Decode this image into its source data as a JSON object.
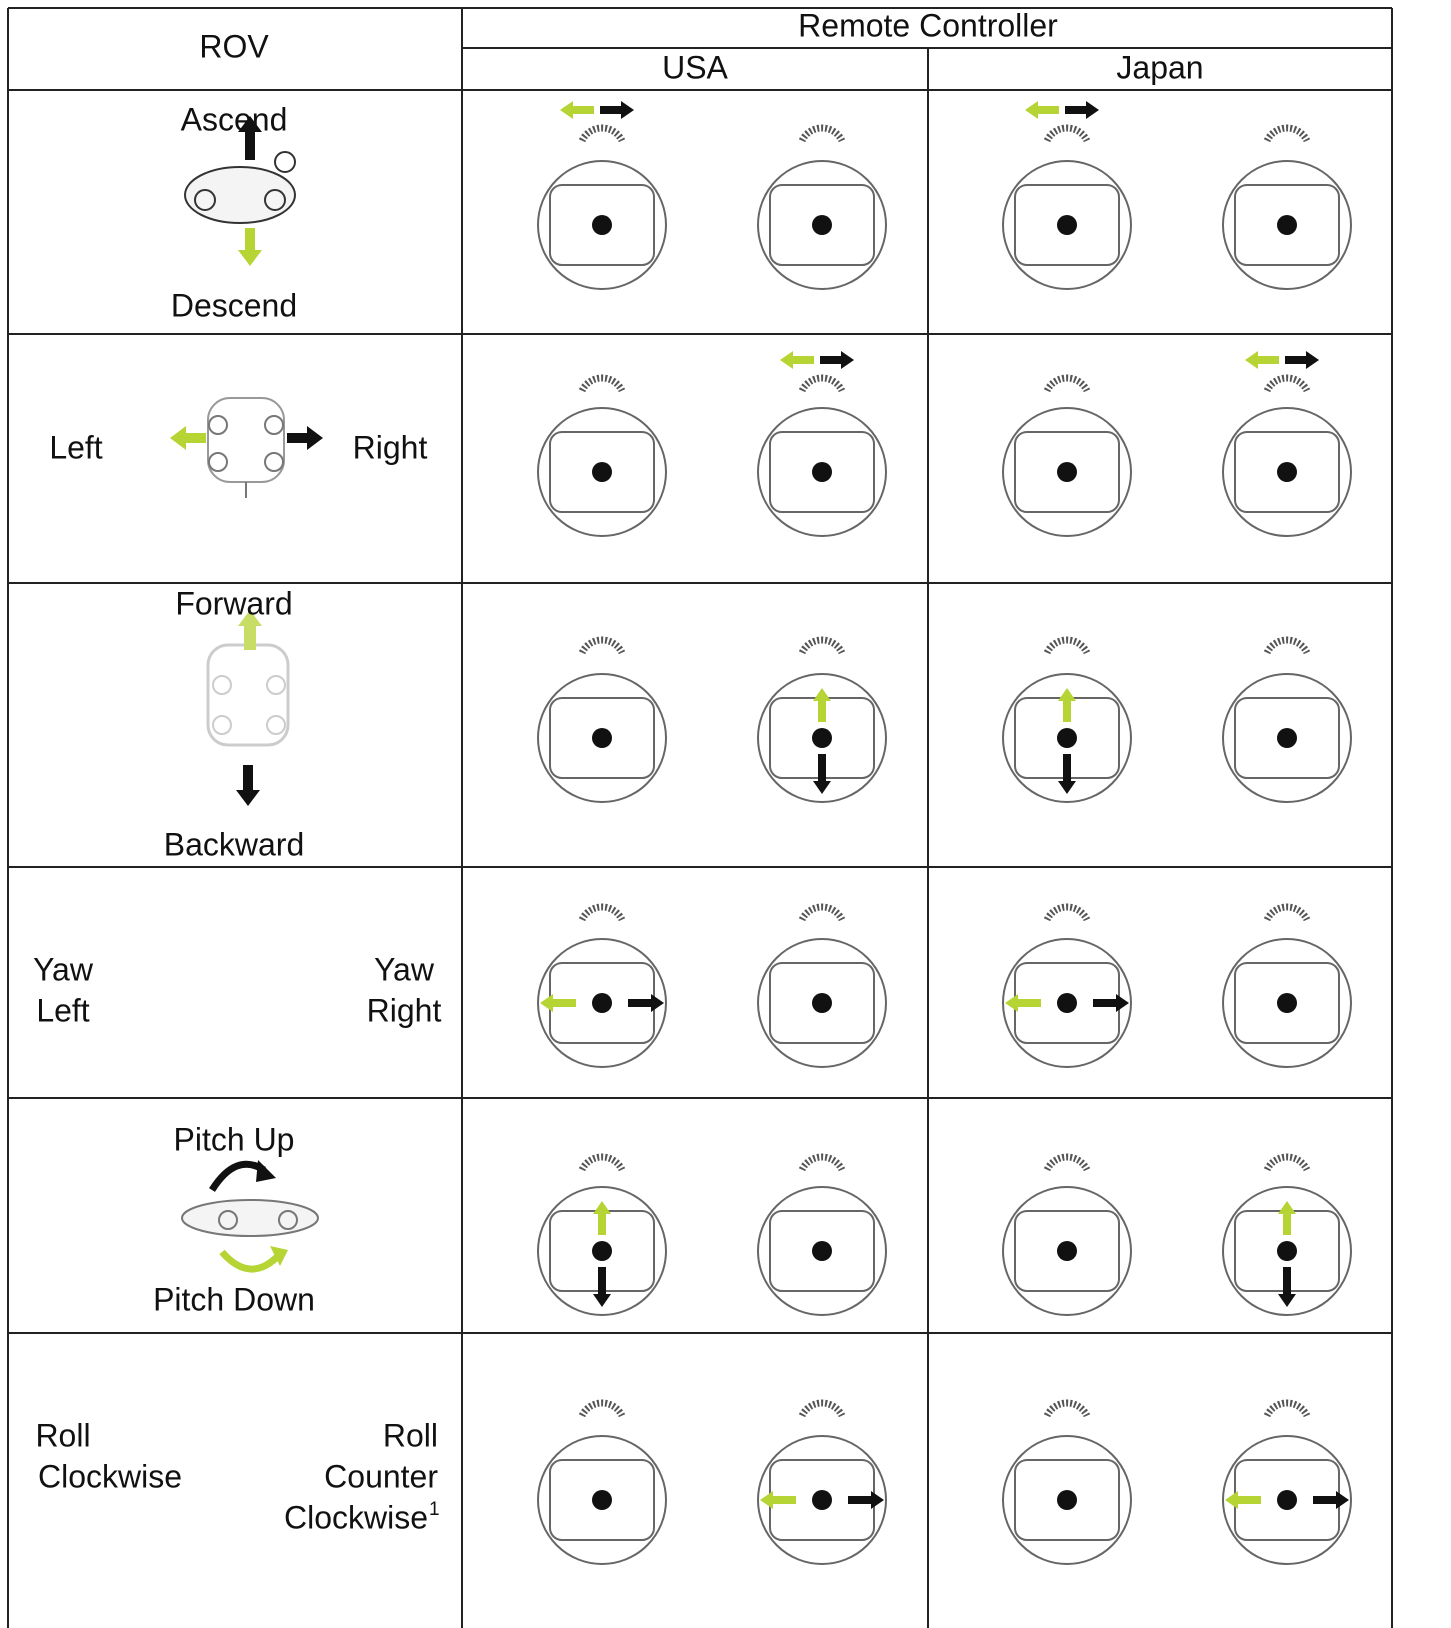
{
  "header": {
    "rov": "ROV",
    "remote_controller": "Remote Controller",
    "usa": "USA",
    "japan": "Japan"
  },
  "rows": [
    {
      "top": "Ascend",
      "bottom": "Descend"
    },
    {
      "left": "Left",
      "right": "Right"
    },
    {
      "top": "Forward",
      "bottom": "Backward"
    },
    {
      "left": [
        "Yaw",
        "Left"
      ],
      "right": [
        "Yaw",
        "Right"
      ]
    },
    {
      "top": "Pitch Up",
      "bottom": "Pitch Down"
    },
    {
      "left": [
        "Roll",
        "Clockwise"
      ],
      "right": [
        "Roll",
        "Counter",
        "Clockwise"
      ],
      "footnote": "1"
    }
  ]
}
